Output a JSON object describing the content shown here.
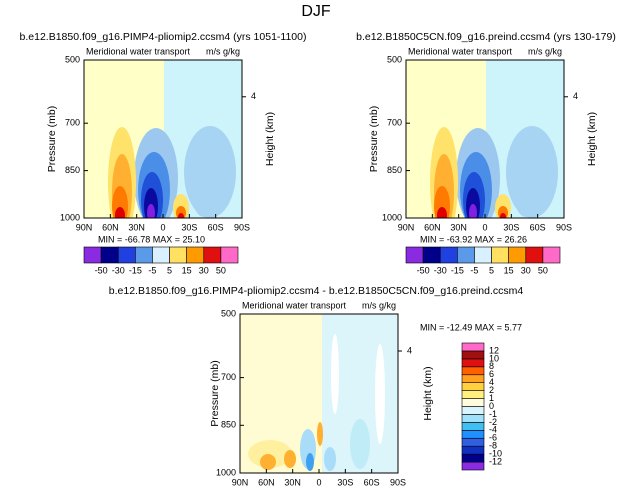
{
  "title": "DJF",
  "chart_data": [
    {
      "type": "contour",
      "title": "b.e12.B1850.f09_g16.PIMP4-pliomip2.ccsm4 (yrs 1051-1100)",
      "subtitle": "Meridional water transport",
      "units": "m/s g/kg",
      "y_label": "Pressure (mb)",
      "y2_label": "Height (km)",
      "xlim": [
        90,
        -90
      ],
      "xticks": [
        {
          "value": 90,
          "label": "90N"
        },
        {
          "value": 60,
          "label": "60N"
        },
        {
          "value": 30,
          "label": "30N"
        },
        0,
        {
          "value": -30,
          "label": "30S"
        },
        {
          "value": -60,
          "label": "60S"
        },
        {
          "value": -90,
          "label": "90S"
        }
      ],
      "ylim": [
        1000,
        500
      ],
      "yticks": [
        500,
        700,
        850,
        1000
      ],
      "y2ticks": [
        4
      ],
      "annotation": "MIN = -66.78   MAX = 25.10",
      "colorbar": {
        "orientation": "horizontal",
        "levels": [
          -50,
          -30,
          -15,
          -5,
          5,
          15,
          30,
          50
        ],
        "colors": [
          "#8a2be2",
          "#00008b",
          "#2040e0",
          "#5a9ae8",
          "#d8f0ff",
          "#ffe060",
          "#ff9a00",
          "#e01010",
          "#ff69c8"
        ]
      }
    },
    {
      "type": "contour",
      "title": "b.e12.B1850C5CN.f09_g16.preind.ccsm4 (yrs 130-179)",
      "subtitle": "Meridional water transport",
      "units": "m/s g/kg",
      "y_label": "Pressure (mb)",
      "y2_label": "Height (km)",
      "xlim": [
        90,
        -90
      ],
      "xticks": [
        {
          "value": 90,
          "label": "90N"
        },
        {
          "value": 60,
          "label": "60N"
        },
        {
          "value": 30,
          "label": "30N"
        },
        0,
        {
          "value": -30,
          "label": "30S"
        },
        {
          "value": -60,
          "label": "60S"
        },
        {
          "value": -90,
          "label": "90S"
        }
      ],
      "ylim": [
        1000,
        500
      ],
      "yticks": [
        500,
        700,
        850,
        1000
      ],
      "y2ticks": [
        4
      ],
      "annotation": "MIN = -63.92   MAX = 26.26",
      "colorbar": {
        "orientation": "horizontal",
        "levels": [
          -50,
          -30,
          -15,
          -5,
          5,
          15,
          30,
          50
        ],
        "colors": [
          "#8a2be2",
          "#00008b",
          "#2040e0",
          "#5a9ae8",
          "#d8f0ff",
          "#ffe060",
          "#ff9a00",
          "#e01010",
          "#ff69c8"
        ]
      }
    },
    {
      "type": "contour",
      "title": "b.e12.B1850.f09_g16.PIMP4-pliomip2.ccsm4 - b.e12.B1850C5CN.f09_g16.preind.ccsm4",
      "subtitle": "Meridional water transport",
      "units": "m/s g/kg",
      "y_label": "Pressure (mb)",
      "y2_label": "Height (km)",
      "xlim": [
        90,
        -90
      ],
      "xticks": [
        {
          "value": 90,
          "label": "90N"
        },
        {
          "value": 60,
          "label": "60N"
        },
        {
          "value": 30,
          "label": "30N"
        },
        0,
        {
          "value": -30,
          "label": "30S"
        },
        {
          "value": -60,
          "label": "60S"
        },
        {
          "value": -90,
          "label": "90S"
        }
      ],
      "ylim": [
        1000,
        500
      ],
      "yticks": [
        500,
        700,
        850,
        1000
      ],
      "y2ticks": [
        4
      ],
      "annotation": "MIN = -12.49   MAX = 5.77",
      "colorbar": {
        "orientation": "vertical",
        "levels": [
          -12,
          -10,
          -8,
          -6,
          -4,
          -2,
          -1,
          0,
          1,
          2,
          4,
          6,
          8,
          10,
          12
        ],
        "colors": [
          "#8a2be2",
          "#00008b",
          "#1030c0",
          "#3060e0",
          "#1e90ff",
          "#40c0f0",
          "#a0e0f8",
          "#d8f4fc",
          "#fffce0",
          "#fff080",
          "#ffd040",
          "#ffa020",
          "#ff6000",
          "#e01010",
          "#a01010",
          "#ff69c8"
        ]
      }
    }
  ]
}
